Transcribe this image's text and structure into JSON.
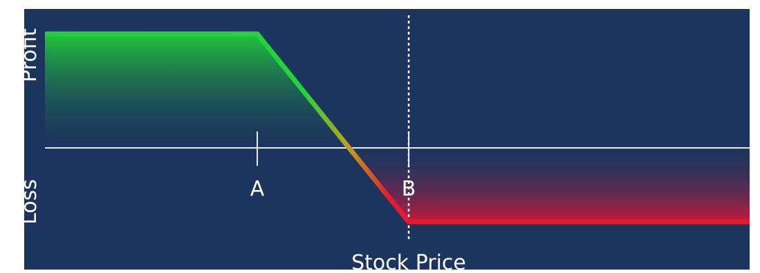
{
  "chart_data": {
    "type": "line",
    "title": "",
    "xlabel": "Stock Price",
    "ylabel_top": "Profit",
    "ylabel_bottom": "Loss",
    "strike_labels": [
      "A",
      "B"
    ],
    "series": [
      {
        "points": [
          {
            "x": "left-edge",
            "y": "max profit"
          },
          {
            "x": "A",
            "y": "max profit"
          },
          {
            "x": "B",
            "y": "max loss"
          },
          {
            "x": "right-edge",
            "y": "max loss"
          }
        ]
      }
    ],
    "colors": {
      "background": "#1b355e",
      "profit": "#22c23c",
      "loss": "#e0132e",
      "axis": "#e8ecf2"
    },
    "grid": false,
    "legend": "none"
  }
}
